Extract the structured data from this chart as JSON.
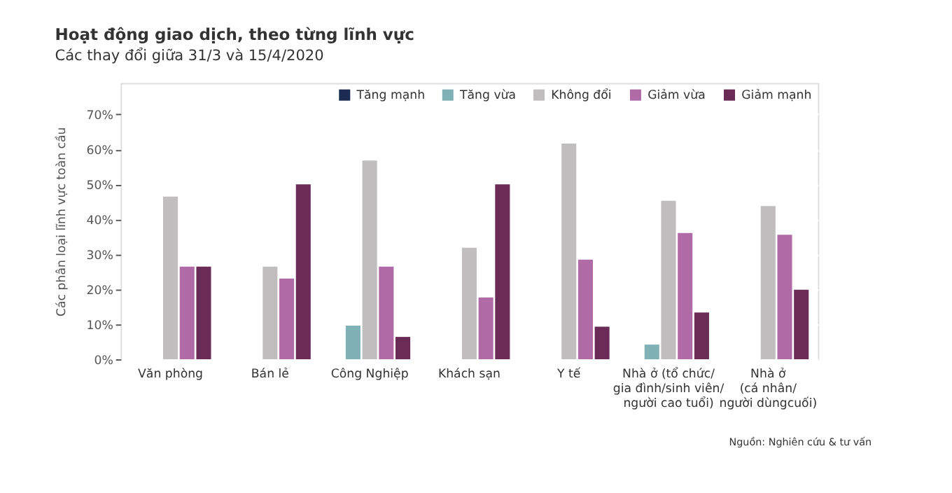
{
  "chart_data": {
    "type": "bar",
    "title": "Hoạt động giao dịch, theo từng lĩnh vực",
    "subtitle": "Các thay đổi giữa 31/3 và 15/4/2020",
    "ylabel": "Các phân loại lĩnh vực toàn cầu",
    "categories": [
      "Văn phòng",
      "Bán lẻ",
      "Công Nghiệp",
      "Khách sạn",
      "Y tế",
      "Nhà ở (tổ chức/\ngia đình/sinh viên/\nngười cao tuổi)",
      "Nhà ở\n(cá nhân/\nngười dùngcuối)"
    ],
    "series": [
      {
        "name": "Tăng mạnh",
        "color": "#1c2b52",
        "values": [
          null,
          null,
          null,
          null,
          null,
          null,
          null
        ]
      },
      {
        "name": "Tăng vừa",
        "color": "#7fb1b7",
        "values": [
          null,
          null,
          9.6,
          null,
          null,
          4.2,
          null
        ]
      },
      {
        "name": "Không đổi",
        "color": "#c0bdbe",
        "values": [
          46.5,
          26.5,
          56.8,
          31.9,
          61.7,
          45.3,
          43.8
        ]
      },
      {
        "name": "Giảm vừa",
        "color": "#b06ba7",
        "values": [
          26.5,
          23.1,
          26.5,
          17.7,
          28.5,
          36.1,
          35.6
        ]
      },
      {
        "name": "Giảm mạnh",
        "color": "#6b2b57",
        "values": [
          26.5,
          50,
          6.4,
          50,
          9.3,
          13.4,
          19.9
        ]
      }
    ],
    "ylim": [
      0,
      79
    ],
    "yticks": [
      {
        "value": 0,
        "label": "0%"
      },
      {
        "value": 10,
        "label": "10%"
      },
      {
        "value": 20,
        "label": "20%"
      },
      {
        "value": 30,
        "label": "30%"
      },
      {
        "value": 40,
        "label": "40%"
      },
      {
        "value": 50,
        "label": "50%"
      },
      {
        "value": 60,
        "label": "60%"
      },
      {
        "value": 70,
        "label": "70%"
      }
    ],
    "grid": "y",
    "legend": "top right",
    "annotations": [
      "Nguồn: Nghiên cứu & tư vấn"
    ]
  }
}
